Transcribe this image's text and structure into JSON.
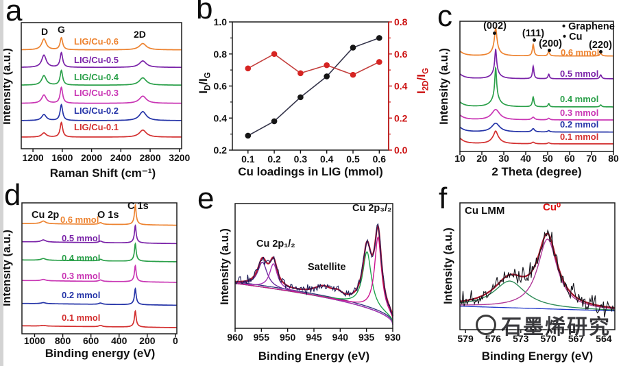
{
  "figure": {
    "background": "#ffffff",
    "edge_strip_color": "#d3d3d3"
  },
  "watermark": {
    "text": "石墨烯研究",
    "logo_icon": "ring-logo"
  },
  "chart_data": [
    {
      "id": "a",
      "type": "line",
      "letter": "a",
      "xlabel": "Raman Shift (cm⁻¹)",
      "ylabel": "Intensity (a.u.)",
      "x_range": [
        1040,
        3230
      ],
      "x_ticks": [
        "1200",
        "1600",
        "2000",
        "2400",
        "2800",
        "3200"
      ],
      "x_tick_values": [
        1200,
        1600,
        2000,
        2400,
        2800,
        3200
      ],
      "peak_labels": {
        "d": "D",
        "g": "G",
        "twod": "2D"
      },
      "curves": [
        {
          "label": "LIG/Cu-0.6",
          "color": "#ED8330",
          "baseline": 0.784,
          "peaks": [
            {
              "c": 1350,
              "w": 75,
              "h": 0.086
            },
            {
              "c": 1588,
              "w": 42,
              "h": 0.095
            },
            {
              "c": 2700,
              "w": 115,
              "h": 0.05
            }
          ]
        },
        {
          "label": "LIG/Cu-0.5",
          "color": "#7A22A8",
          "baseline": 0.645,
          "peaks": [
            {
              "c": 1350,
              "w": 75,
              "h": 0.097
            },
            {
              "c": 1588,
              "w": 42,
              "h": 0.115
            },
            {
              "c": 2700,
              "w": 115,
              "h": 0.051
            }
          ]
        },
        {
          "label": "LIG/Cu-0.4",
          "color": "#2BA04A",
          "baseline": 0.504,
          "peaks": [
            {
              "c": 1350,
              "w": 75,
              "h": 0.076
            },
            {
              "c": 1588,
              "w": 42,
              "h": 0.115
            },
            {
              "c": 2700,
              "w": 115,
              "h": 0.058
            }
          ]
        },
        {
          "label": "LIG/Cu-0.3",
          "color": "#C936B4",
          "baseline": 0.36,
          "peaks": [
            {
              "c": 1350,
              "w": 75,
              "h": 0.066
            },
            {
              "c": 1588,
              "w": 42,
              "h": 0.125
            },
            {
              "c": 2700,
              "w": 115,
              "h": 0.057
            }
          ]
        },
        {
          "label": "LIG/Cu-0.2",
          "color": "#2534A8",
          "baseline": 0.223,
          "peaks": [
            {
              "c": 1350,
              "w": 75,
              "h": 0.048
            },
            {
              "c": 1588,
              "w": 42,
              "h": 0.125
            },
            {
              "c": 2700,
              "w": 115,
              "h": 0.071
            }
          ]
        },
        {
          "label": "LIG/Cu-0.1",
          "color": "#D32F2F",
          "baseline": 0.092,
          "peaks": [
            {
              "c": 1350,
              "w": 75,
              "h": 0.033
            },
            {
              "c": 1588,
              "w": 42,
              "h": 0.115
            },
            {
              "c": 2700,
              "w": 115,
              "h": 0.056
            }
          ]
        }
      ]
    },
    {
      "id": "b",
      "type": "scatter-line",
      "letter": "b",
      "xlabel": "Cu loadings in LIG (mmol)",
      "ylabel_left": {
        "i1": "I",
        "s1": "D",
        "i2": "/I",
        "s2": "G"
      },
      "ylabel_right": {
        "i1": "I",
        "s1": "2D",
        "i2": "/I",
        "s2": "G"
      },
      "x": [
        0.1,
        0.2,
        0.3,
        0.4,
        0.5,
        0.6
      ],
      "x_ticks": [
        "0.1",
        "0.2",
        "0.3",
        "0.4",
        "0.5",
        "0.6"
      ],
      "left_axis": {
        "range": [
          0.2,
          1.0
        ],
        "ticks": [
          "1.0",
          "0.8",
          "0.6",
          "0.4",
          "0.2"
        ],
        "tick_values": [
          1.0,
          0.8,
          0.6,
          0.4,
          0.2
        ],
        "color": "#111111"
      },
      "right_axis": {
        "range": [
          0.0,
          0.8
        ],
        "ticks": [
          "0.8",
          "0.6",
          "0.4",
          "0.2",
          "0.0"
        ],
        "tick_values": [
          0.8,
          0.6,
          0.4,
          0.2,
          0.0
        ],
        "color": "#CC1111"
      },
      "series": [
        {
          "name": "ID/IG",
          "axis": "left",
          "marker_color": "#161616",
          "line_color": "#34344a",
          "values": [
            0.29,
            0.38,
            0.53,
            0.66,
            0.84,
            0.9
          ]
        },
        {
          "name": "I2D/IG",
          "axis": "right",
          "marker_color": "#D62422",
          "line_color": "#C4403E",
          "values": [
            0.51,
            0.6,
            0.48,
            0.53,
            0.47,
            0.55
          ]
        }
      ]
    },
    {
      "id": "c",
      "type": "line",
      "letter": "c",
      "xlabel": "2 Theta (degree)",
      "ylabel": "Intensity (a.u.)",
      "x_range": [
        10,
        80
      ],
      "x_ticks": [
        "10",
        "20",
        "30",
        "40",
        "50",
        "60",
        "70",
        "80"
      ],
      "x_tick_values": [
        10,
        20,
        30,
        40,
        50,
        60,
        70,
        80
      ],
      "peak_labels": [
        "(002)",
        "(111)",
        "(200)",
        "(220)"
      ],
      "peak_positions": [
        26.3,
        43.4,
        50.5,
        74.2
      ],
      "legend": [
        {
          "marker": "•",
          "label": "Graphene"
        },
        {
          "marker": "•",
          "label": "Cu"
        }
      ],
      "curves": [
        {
          "label": "0.6 mmol",
          "color": "#ED8330",
          "baseline": 0.733,
          "peaks": [
            {
              "c": 8.5,
              "w": 5,
              "h": 0.05
            },
            {
              "c": 26.3,
              "w": 4,
              "h": 0.05
            },
            {
              "c": 26.3,
              "w": 1.3,
              "h": 0.165
            },
            {
              "c": 43.4,
              "w": 0.9,
              "h": 0.088
            },
            {
              "c": 50.5,
              "w": 0.9,
              "h": 0.035
            },
            {
              "c": 74.2,
              "w": 1.1,
              "h": 0.02
            }
          ]
        },
        {
          "label": "0.5 mmol",
          "color": "#7A22A8",
          "baseline": 0.558,
          "peaks": [
            {
              "c": 8.5,
              "w": 5,
              "h": 0.05
            },
            {
              "c": 26.3,
              "w": 4,
              "h": 0.05
            },
            {
              "c": 26.3,
              "w": 1.0,
              "h": 0.175
            },
            {
              "c": 43.4,
              "w": 0.8,
              "h": 0.096
            },
            {
              "c": 50.5,
              "w": 0.8,
              "h": 0.035
            },
            {
              "c": 74.2,
              "w": 1.0,
              "h": 0.03
            }
          ]
        },
        {
          "label": "0.4 mmol",
          "color": "#2BA04A",
          "baseline": 0.342,
          "peaks": [
            {
              "c": 8.5,
              "w": 5,
              "h": 0.05
            },
            {
              "c": 26.3,
              "w": 4.5,
              "h": 0.07
            },
            {
              "c": 26.3,
              "w": 1.0,
              "h": 0.23
            },
            {
              "c": 43.4,
              "w": 0.9,
              "h": 0.075
            },
            {
              "c": 50.5,
              "w": 0.8,
              "h": 0.025
            },
            {
              "c": 74.2,
              "w": 1.0,
              "h": 0.015
            }
          ]
        },
        {
          "label": "0.3 mmol",
          "color": "#C936B4",
          "baseline": 0.242,
          "peaks": [
            {
              "c": 8.5,
              "w": 5,
              "h": 0.05
            },
            {
              "c": 26.3,
              "w": 4.5,
              "h": 0.079
            },
            {
              "c": 43.4,
              "w": 1.5,
              "h": 0.02
            },
            {
              "c": 50.5,
              "w": 1.2,
              "h": 0.012
            }
          ]
        },
        {
          "label": "0.2 mmol",
          "color": "#2534A8",
          "baseline": 0.149,
          "peaks": [
            {
              "c": 8.5,
              "w": 5,
              "h": 0.05
            },
            {
              "c": 26.3,
              "w": 4.5,
              "h": 0.067
            },
            {
              "c": 43.4,
              "w": 1.5,
              "h": 0.025
            },
            {
              "c": 50.5,
              "w": 1.2,
              "h": 0.01
            }
          ]
        },
        {
          "label": "0.1 mmol",
          "color": "#D32F2F",
          "baseline": 0.058,
          "peaks": [
            {
              "c": 8.5,
              "w": 5,
              "h": 0.06
            },
            {
              "c": 26.3,
              "w": 4.0,
              "h": 0.068
            },
            {
              "c": 26.3,
              "w": 1.5,
              "h": 0.03
            },
            {
              "c": 43.4,
              "w": 1.5,
              "h": 0.012
            },
            {
              "c": 50.5,
              "w": 1.2,
              "h": 0.008
            }
          ]
        }
      ]
    },
    {
      "id": "d",
      "type": "line",
      "letter": "d",
      "xlabel": "Binding energy (eV)",
      "ylabel": "Intensity (a.u.)",
      "x_range": [
        1090,
        -10
      ],
      "x_ticks": [
        "1000",
        "800",
        "600",
        "400",
        "200",
        "0"
      ],
      "x_tick_values": [
        1000,
        800,
        600,
        400,
        200,
        0
      ],
      "annotations": {
        "cu2p": "Cu 2p",
        "o1s": "O 1s",
        "c1s": "C 1s"
      },
      "curves": [
        {
          "label": "0.6 mmol",
          "color": "#ED8330",
          "baseline": 0.829,
          "tilt": 0.014,
          "peaks": [
            {
              "c": 285,
              "w": 14,
              "h": 0.135
            },
            {
              "c": 285,
              "w": 45,
              "h": 0.015
            },
            {
              "c": 532,
              "w": 30,
              "h": 0.013
            },
            {
              "c": 938,
              "w": 40,
              "h": 0.02
            }
          ]
        },
        {
          "label": "0.5 mmol",
          "color": "#7A22A8",
          "baseline": 0.689,
          "tilt": 0.014,
          "peaks": [
            {
              "c": 285,
              "w": 14,
              "h": 0.12
            },
            {
              "c": 285,
              "w": 45,
              "h": 0.014
            },
            {
              "c": 532,
              "w": 30,
              "h": 0.012
            },
            {
              "c": 938,
              "w": 40,
              "h": 0.016
            }
          ]
        },
        {
          "label": "0.4 mmol",
          "color": "#2BA04A",
          "baseline": 0.55,
          "tilt": 0.014,
          "peaks": [
            {
              "c": 285,
              "w": 14,
              "h": 0.12
            },
            {
              "c": 285,
              "w": 45,
              "h": 0.014
            },
            {
              "c": 532,
              "w": 30,
              "h": 0.012
            },
            {
              "c": 938,
              "w": 40,
              "h": 0.013
            }
          ]
        },
        {
          "label": "0.3 mmol",
          "color": "#C936B4",
          "baseline": 0.393,
          "tilt": 0.014,
          "peaks": [
            {
              "c": 285,
              "w": 14,
              "h": 0.11
            },
            {
              "c": 285,
              "w": 45,
              "h": 0.013
            },
            {
              "c": 532,
              "w": 30,
              "h": 0.011
            },
            {
              "c": 938,
              "w": 40,
              "h": 0.01
            }
          ]
        },
        {
          "label": "0.2 mmol",
          "color": "#2534A8",
          "baseline": 0.218,
          "tilt": 0.014,
          "peaks": [
            {
              "c": 285,
              "w": 14,
              "h": 0.11
            },
            {
              "c": 285,
              "w": 45,
              "h": 0.013
            },
            {
              "c": 532,
              "w": 30,
              "h": 0.01
            },
            {
              "c": 938,
              "w": 40,
              "h": 0.008
            }
          ]
        },
        {
          "label": "0.1 mmol",
          "color": "#D32F2F",
          "baseline": 0.047,
          "tilt": 0.014,
          "peaks": [
            {
              "c": 285,
              "w": 14,
              "h": 0.11
            },
            {
              "c": 285,
              "w": 45,
              "h": 0.013
            },
            {
              "c": 532,
              "w": 30,
              "h": 0.01
            },
            {
              "c": 938,
              "w": 40,
              "h": 0.005
            }
          ]
        }
      ]
    },
    {
      "id": "e",
      "type": "line-fit",
      "letter": "e",
      "xlabel": "Binding Energy (eV)",
      "ylabel": "Intensity (a.u.)",
      "x_range": [
        960,
        930
      ],
      "x_ticks": [
        "960",
        "955",
        "950",
        "945",
        "940",
        "935",
        "930"
      ],
      "x_tick_values": [
        960,
        955,
        950,
        945,
        940,
        935,
        930
      ],
      "annotations": {
        "left_peak": "Cu 2p₁/₂",
        "satellite": "Satellite",
        "right_peak": "Cu 2p₃/₂"
      },
      "baseline": {
        "left": 0.36,
        "right": 0.03,
        "pow": 0.5,
        "colors": [
          "#2E7D52",
          "#32327E"
        ]
      },
      "components": [
        {
          "name": "cu2p12-component-a",
          "c": 954.8,
          "w": 2.2,
          "h": 0.2,
          "color": "#6A2C9E"
        },
        {
          "name": "cu2p12-component-b",
          "c": 952.7,
          "w": 1.8,
          "h": 0.2,
          "color": "#A832B4"
        },
        {
          "name": "cu2p32-component-a",
          "c": 934.9,
          "w": 2.0,
          "h": 0.45,
          "color": "#1FA24A"
        },
        {
          "name": "cu2p32-component-b",
          "c": 932.8,
          "w": 1.6,
          "h": 0.6,
          "color": "#CC1490"
        }
      ],
      "satellite_bumps": [
        {
          "c": 943.2,
          "w": 4.5,
          "h": 0.075
        },
        {
          "c": 940.5,
          "w": 2.2,
          "h": 0.035
        }
      ],
      "envelope_color": "#AF1233",
      "raw_color": "#1B1B55",
      "noise": 0.028,
      "seed": 9
    },
    {
      "id": "f",
      "type": "line-fit",
      "letter": "f",
      "xlabel": "Binding Energy (eV)",
      "ylabel": "Intensity (a.u.)",
      "x_range": [
        579.6,
        562.8
      ],
      "x_ticks": [
        "579",
        "576",
        "573",
        "570",
        "567",
        "564"
      ],
      "x_tick_values": [
        579,
        576,
        573,
        570,
        567,
        564
      ],
      "annotations": {
        "region": "Cu LMM",
        "species": "Cu⁰",
        "species_color": "#DD1111"
      },
      "baseline": {
        "left": 0.185,
        "right": 0.148,
        "pow": 1.0,
        "colors": [
          "#2239C9"
        ]
      },
      "components": [
        {
          "name": "broad-component",
          "c": 574.2,
          "w": 4.2,
          "h": 0.21,
          "color": "#2E8B57"
        },
        {
          "name": "cu0-component",
          "c": 570.1,
          "w": 2.6,
          "h": 0.55,
          "color": "#B03898"
        }
      ],
      "satellite_bumps": [],
      "envelope_color": "#A01228",
      "raw_color": "#15151C",
      "noise": 0.05,
      "seed": 13
    }
  ]
}
